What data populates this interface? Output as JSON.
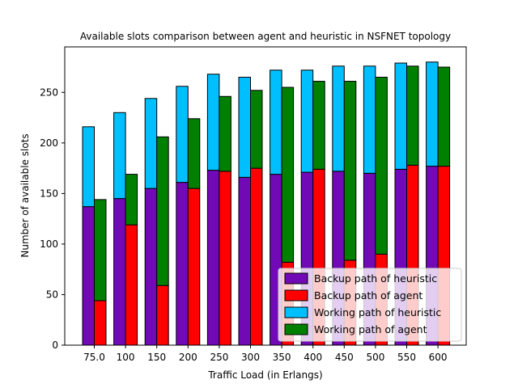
{
  "chart_data": {
    "type": "bar",
    "title": "Available slots comparison between agent and heuristic in NSFNET topology",
    "xlabel": "Traffic Load (in Erlangs)",
    "ylabel": "Number of available slots",
    "categories": [
      "75.0",
      "100",
      "150",
      "200",
      "250",
      "300",
      "350",
      "400",
      "450",
      "500",
      "550",
      "600"
    ],
    "ylim": [
      0,
      295
    ],
    "yticks": [
      "0",
      "50",
      "100",
      "150",
      "200",
      "250"
    ],
    "legend_position": "lower-right",
    "grid": false,
    "stacked": true,
    "series": [
      {
        "name": "Backup path of heuristic",
        "group": "heuristic",
        "color": "#7209b7",
        "values": [
          137,
          145,
          155,
          161,
          173,
          166,
          169,
          171,
          172,
          170,
          174,
          177
        ]
      },
      {
        "name": "Backup path of agent",
        "group": "agent",
        "color": "#ff0000",
        "values": [
          44,
          119,
          59,
          155,
          172,
          175,
          82,
          174,
          84,
          90,
          178,
          177
        ]
      },
      {
        "name": "Working path of heuristic",
        "group": "heuristic",
        "color": "#00bfff",
        "values": [
          79,
          85,
          89,
          95,
          95,
          99,
          103,
          101,
          104,
          106,
          105,
          103
        ]
      },
      {
        "name": "Working path of agent",
        "group": "agent",
        "color": "#008000",
        "values": [
          100,
          50,
          147,
          69,
          74,
          77,
          173,
          87,
          177,
          175,
          98,
          98
        ]
      }
    ]
  }
}
